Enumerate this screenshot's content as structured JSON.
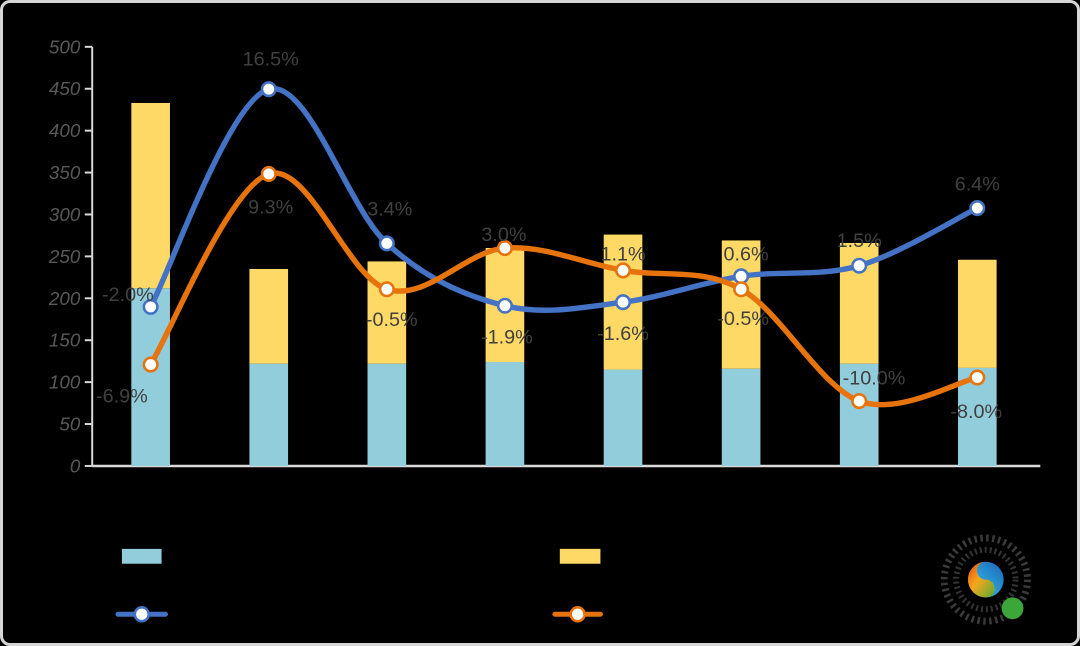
{
  "chart_data": {
    "type": "combo",
    "subtype": "stacked-bars-with-two-lines",
    "grid": false,
    "legend_position": "bottom",
    "y_axis": {
      "min": 0,
      "max": 500,
      "step": 50,
      "tick_labels": [
        "500",
        "450",
        "400",
        "350",
        "300",
        "250",
        "200",
        "150",
        "100",
        "50",
        "0"
      ],
      "label_color": "#595959",
      "axis_color": "#D9D9D9"
    },
    "secondary_axis": {
      "unit": "%",
      "tick_labels_visible": false
    },
    "bars": {
      "stacked": true,
      "series": [
        {
          "name": "bottom-segment",
          "color": "#92CDDC",
          "values": [
            212,
            122,
            122,
            124,
            115,
            116,
            122,
            117
          ]
        },
        {
          "name": "top-segment",
          "color": "#FFD966",
          "values": [
            221,
            113,
            122,
            136,
            161,
            153,
            144,
            129
          ]
        }
      ],
      "totals": [
        433,
        235,
        244,
        260,
        276,
        269,
        266,
        246
      ]
    },
    "lines": [
      {
        "name": "blue-line",
        "color": "#4472C4",
        "values_pct": [
          -2.0,
          16.5,
          3.4,
          -1.9,
          -1.6,
          0.6,
          1.5,
          6.4
        ],
        "labels": [
          "-2.0%",
          "16.5%",
          "3.4%",
          "-1.9%",
          "-1.6%",
          "0.6%",
          "1.5%",
          "6.4%"
        ]
      },
      {
        "name": "orange-line",
        "color": "#E6730C",
        "values_pct": [
          -6.9,
          9.3,
          -0.5,
          3.0,
          1.1,
          -0.5,
          -10.0,
          -8.0
        ],
        "labels": [
          "-6.9%",
          "9.3%",
          "-0.5%",
          "3.0%",
          "1.1%",
          "-0.5%",
          "-10.0%",
          "-8.0%"
        ]
      }
    ],
    "data_label_color": "#404040",
    "legend": {
      "items": [
        {
          "swatch": "bar",
          "color": "#92CDDC"
        },
        {
          "swatch": "bar",
          "color": "#FFD966"
        },
        {
          "swatch": "line-marker",
          "color": "#4472C4"
        },
        {
          "swatch": "line-marker",
          "color": "#E6730C"
        }
      ]
    }
  }
}
